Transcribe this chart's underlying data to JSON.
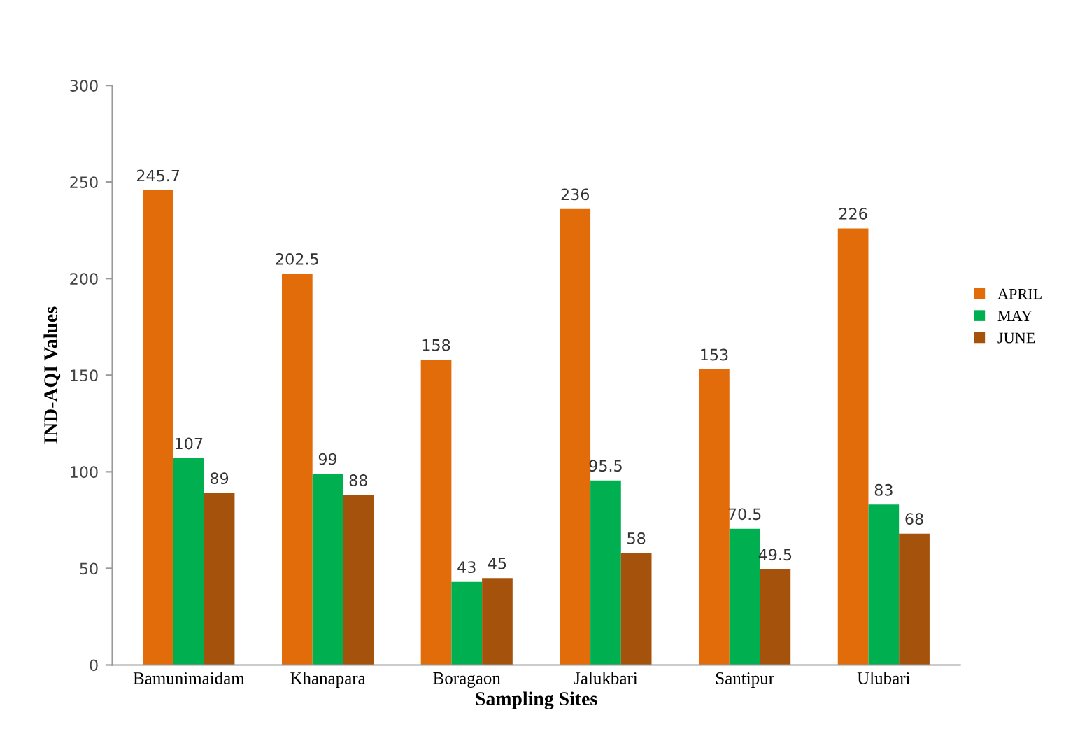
{
  "chart_data": {
    "type": "bar",
    "xlabel": "Sampling Sites",
    "ylabel": "IND-AQI Values",
    "categories": [
      "Bamunimaidam",
      "Khanapara",
      "Boragaon",
      "Jalukbari",
      "Santipur",
      "Ulubari"
    ],
    "series": [
      {
        "name": "APRIL",
        "color": "#e36c0a",
        "values": [
          245.7,
          202.5,
          158,
          236,
          153,
          226
        ]
      },
      {
        "name": "MAY",
        "color": "#00b050",
        "values": [
          107,
          99,
          43,
          95.5,
          70.5,
          83
        ]
      },
      {
        "name": "JUNE",
        "color": "#a5520d",
        "values": [
          89,
          88,
          45,
          58,
          49.5,
          68
        ]
      }
    ],
    "ylim": [
      0,
      300
    ],
    "yticks": [
      0,
      50,
      100,
      150,
      200,
      250,
      300
    ],
    "data_labels": true,
    "legend": "right",
    "grid": false
  }
}
